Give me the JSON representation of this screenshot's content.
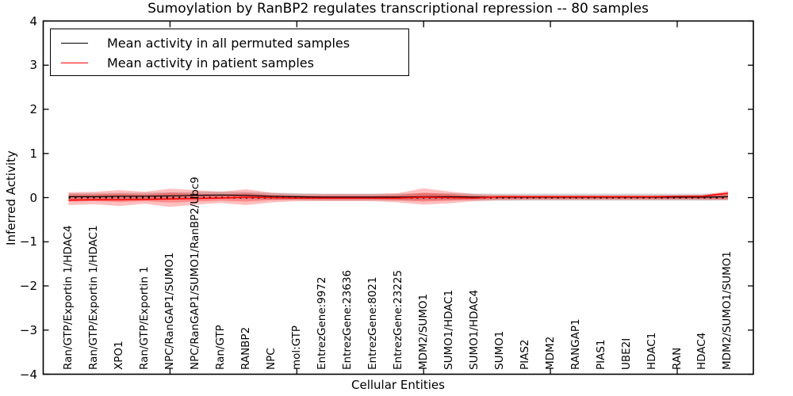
{
  "chart_data": {
    "type": "line",
    "title": "Sumoylation by RanBP2 regulates transcriptional repression -- 80 samples",
    "xlabel": "Cellular Entities",
    "ylabel": "Inferred Activity",
    "ylim": [
      -4,
      4
    ],
    "yticks": [
      -4,
      -3,
      -2,
      -1,
      0,
      1,
      2,
      3,
      4
    ],
    "x_major_tick_positions": [
      5,
      10,
      15,
      20,
      25
    ],
    "grid": false,
    "legend_position": "upper left",
    "legend": [
      {
        "label": "Mean activity in all permuted samples",
        "color": "#000000"
      },
      {
        "label": "Mean activity in patient samples",
        "color": "#ff0000"
      }
    ],
    "categories": [
      "Ran/GTP/Exportin 1/HDAC4",
      "Ran/GTP/Exportin 1/HDAC1",
      "XPO1",
      "Ran/GTP/Exportin 1",
      "NPC/RanGAP1/SUMO1",
      "NPC/RanGAP1/SUMO1/RanBP2/Ubc9",
      "Ran/GTP",
      "RANBP2",
      "NPC",
      "mol:GTP",
      "EntrezGene:9972",
      "EntrezGene:23636",
      "EntrezGene:8021",
      "EntrezGene:23225",
      "MDM2/SUMO1",
      "SUMO1/HDAC1",
      "SUMO1/HDAC4",
      "SUMO1",
      "PIAS2",
      "MDM2",
      "RANGAP1",
      "PIAS1",
      "UBE2I",
      "HDAC1",
      "RAN",
      "HDAC4",
      "MDM2/SUMO1/SUMO1"
    ],
    "series": [
      {
        "name": "Mean activity in all permuted samples",
        "color": "#000000",
        "style": "solid",
        "width": 1.2,
        "values": [
          0.02,
          0.02,
          0.03,
          0.03,
          0.04,
          0.05,
          0.06,
          0.05,
          0.03,
          0.02,
          0.01,
          0.01,
          0.01,
          0.01,
          0.02,
          0.02,
          0.01,
          0.01,
          0.01,
          0.01,
          0.01,
          0.01,
          0.01,
          0.01,
          0.01,
          0.01,
          0.02
        ]
      },
      {
        "name": "Zero baseline",
        "color": "#000000",
        "style": "dotted",
        "width": 2.2,
        "values": [
          0,
          0,
          0,
          0,
          0,
          0,
          0,
          0,
          0,
          0,
          0,
          0,
          0,
          0,
          0,
          0,
          0,
          0,
          0,
          0,
          0,
          0,
          0,
          0,
          0,
          0,
          0
        ]
      },
      {
        "name": "Mean activity in patient samples",
        "color": "#ff0000",
        "style": "solid",
        "width": 1.5,
        "values": [
          -0.06,
          -0.05,
          -0.05,
          -0.04,
          -0.03,
          -0.02,
          -0.01,
          0.01,
          0.0,
          -0.01,
          -0.01,
          -0.01,
          -0.01,
          -0.01,
          0.01,
          0.0,
          -0.01,
          0.02,
          0.02,
          0.02,
          0.02,
          0.02,
          0.02,
          0.02,
          0.03,
          0.03,
          0.1
        ]
      }
    ],
    "bands": [
      {
        "name": "permuted-samples-range",
        "color": "#aaaaaa",
        "opacity": 0.5,
        "upper": [
          0.1,
          0.1,
          0.11,
          0.11,
          0.12,
          0.13,
          0.14,
          0.13,
          0.11,
          0.1,
          0.09,
          0.09,
          0.09,
          0.09,
          0.1,
          0.1,
          0.09,
          0.09,
          0.09,
          0.09,
          0.09,
          0.09,
          0.09,
          0.09,
          0.09,
          0.09,
          0.1
        ],
        "lower": [
          -0.06,
          -0.06,
          -0.05,
          -0.05,
          -0.04,
          -0.03,
          -0.02,
          -0.03,
          -0.05,
          -0.06,
          -0.07,
          -0.07,
          -0.07,
          -0.07,
          -0.06,
          -0.06,
          -0.07,
          -0.07,
          -0.07,
          -0.07,
          -0.07,
          -0.07,
          -0.07,
          -0.07,
          -0.07,
          -0.07,
          -0.06
        ]
      },
      {
        "name": "patient-samples-outer-range",
        "color": "#ff0000",
        "opacity": 0.25,
        "upper": [
          0.12,
          0.13,
          0.17,
          0.13,
          0.2,
          0.17,
          0.13,
          0.19,
          0.11,
          0.08,
          0.08,
          0.08,
          0.08,
          0.1,
          0.21,
          0.14,
          0.08,
          0.06,
          0.05,
          0.05,
          0.05,
          0.05,
          0.05,
          0.05,
          0.05,
          0.06,
          0.15
        ],
        "lower": [
          -0.17,
          -0.15,
          -0.19,
          -0.14,
          -0.21,
          -0.16,
          -0.12,
          -0.17,
          -0.11,
          -0.08,
          -0.08,
          -0.08,
          -0.08,
          -0.11,
          -0.16,
          -0.13,
          -0.08,
          -0.06,
          -0.05,
          -0.05,
          -0.05,
          -0.05,
          -0.05,
          -0.05,
          -0.05,
          -0.05,
          -0.06
        ]
      },
      {
        "name": "patient-samples-inner-range",
        "color": "#ff0000",
        "opacity": 0.28,
        "upper": [
          0.07,
          0.07,
          0.09,
          0.07,
          0.11,
          0.09,
          0.07,
          0.1,
          0.06,
          0.04,
          0.04,
          0.04,
          0.04,
          0.06,
          0.11,
          0.08,
          0.04,
          0.03,
          0.03,
          0.03,
          0.03,
          0.03,
          0.03,
          0.03,
          0.03,
          0.03,
          0.09
        ],
        "lower": [
          -0.09,
          -0.08,
          -0.1,
          -0.08,
          -0.11,
          -0.09,
          -0.07,
          -0.09,
          -0.06,
          -0.04,
          -0.04,
          -0.04,
          -0.04,
          -0.06,
          -0.09,
          -0.07,
          -0.04,
          -0.03,
          -0.03,
          -0.03,
          -0.03,
          -0.03,
          -0.03,
          -0.03,
          -0.03,
          -0.03,
          -0.03
        ]
      }
    ]
  }
}
